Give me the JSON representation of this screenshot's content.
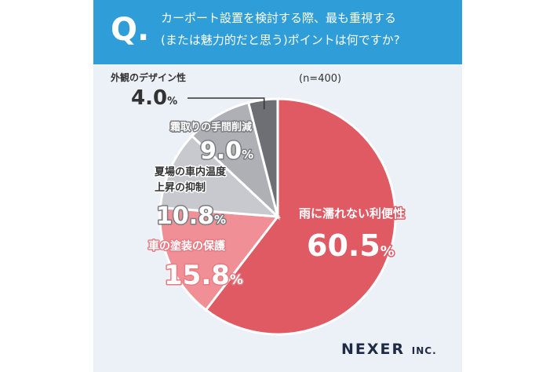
{
  "header": {
    "q_mark": "Q.",
    "question_line1": "カーポート設置を検討する際、最も重視する",
    "question_line2": "(または魅力的だと思う)ポイントは何ですか?"
  },
  "sample_note": "(n=400)",
  "brand": {
    "name": "NEXER",
    "suffix": "INC."
  },
  "colors": {
    "header_bg": "#2f9ed8",
    "slice_main": "#e05a64",
    "slice_second": "#f08f95",
    "slice_third": "#c8c9ce",
    "slice_fourth": "#aeb0b5",
    "slice_fifth": "#6d6f74"
  },
  "chart_data": {
    "type": "pie",
    "slices": [
      {
        "label": "雨に濡れない利便性",
        "value": 60.5,
        "display": "60.5",
        "unit": "%"
      },
      {
        "label": "車の塗装の保護",
        "value": 15.8,
        "display": "15.8",
        "unit": "%"
      },
      {
        "label": "夏場の車内温度\n上昇の抑制",
        "value": 10.8,
        "display": "10.8",
        "unit": "%"
      },
      {
        "label": "霜取りの手間削減",
        "value": 9.0,
        "display": "9.0",
        "unit": "%"
      },
      {
        "label": "外観のデザイン性",
        "value": 4.0,
        "display": "4.0",
        "unit": "%"
      }
    ],
    "start_angle": "12 o'clock",
    "direction": "clockwise",
    "legend": "none"
  }
}
